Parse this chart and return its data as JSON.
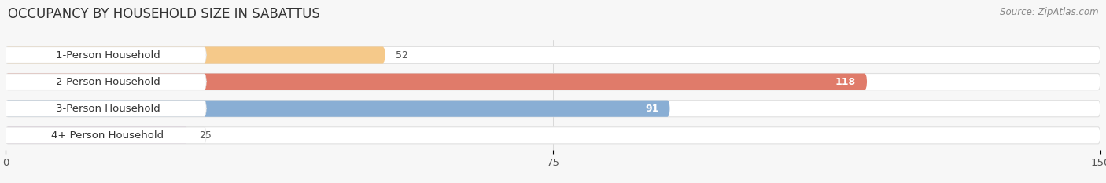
{
  "title": "OCCUPANCY BY HOUSEHOLD SIZE IN SABATTUS",
  "source": "Source: ZipAtlas.com",
  "categories": [
    "1-Person Household",
    "2-Person Household",
    "3-Person Household",
    "4+ Person Household"
  ],
  "values": [
    52,
    118,
    91,
    25
  ],
  "bar_colors": [
    "#f5c98a",
    "#e07b6a",
    "#89aed4",
    "#c9a8c8"
  ],
  "bar_edge_colors": [
    "#e8b870",
    "#cc6655",
    "#6a8fbb",
    "#b090b8"
  ],
  "xlim": [
    0,
    150
  ],
  "xticks": [
    0,
    75,
    150
  ],
  "background_color": "#f7f7f7",
  "bar_bg_color": "#ffffff",
  "bar_bg_edge_color": "#e0e0e0",
  "title_fontsize": 12,
  "label_fontsize": 9.5,
  "value_fontsize": 9,
  "source_fontsize": 8.5
}
